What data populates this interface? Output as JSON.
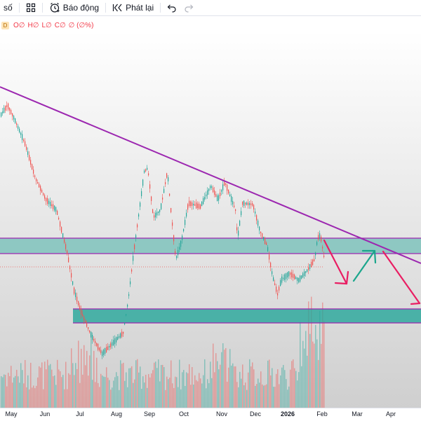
{
  "toolbar": {
    "indicators_label": "số",
    "alert_label": "Báo động",
    "replay_label": "Phát lại",
    "icons": [
      "layout-grid-icon",
      "alarm-clock-icon",
      "replay-icon",
      "undo-icon",
      "redo-icon"
    ]
  },
  "legend": {
    "badge": "D",
    "o": "O∅",
    "h": "H∅",
    "l": "L∅",
    "c": "C∅",
    "change": "∅ (∅%)"
  },
  "colors": {
    "up": "#26a69a",
    "down": "#ef5350",
    "trendline": "#9c27b0",
    "zone_fill": "#26a69a",
    "arrow_red": "#e91e63",
    "arrow_green": "#1ba68c"
  },
  "chart_data": {
    "type": "candlestick",
    "x_tick_labels": [
      "May",
      "Jun",
      "Jul",
      "Aug",
      "Sep",
      "Oct",
      "Nov",
      "Dec",
      "2026",
      "Feb",
      "Mar",
      "Apr"
    ],
    "series": [],
    "annotations": [
      "descending-trendline",
      "resistance-zone",
      "support-zone",
      "projection-arrows"
    ]
  }
}
